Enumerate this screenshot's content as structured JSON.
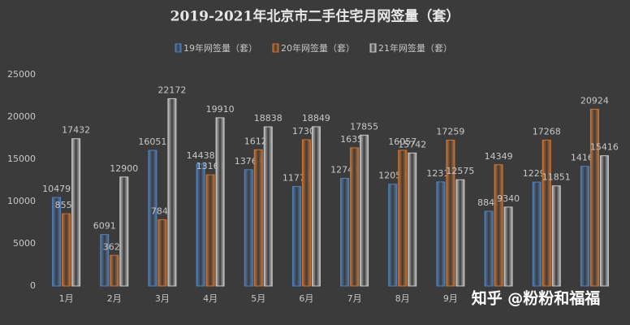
{
  "chart_data": {
    "type": "bar",
    "title": "2019-2021年北京市二手住宅月网签量（套）",
    "categories": [
      "1月",
      "2月",
      "3月",
      "4月",
      "5月",
      "6月",
      "7月",
      "8月",
      "9月",
      null,
      null,
      null
    ],
    "series": [
      {
        "name": "19年网签量（套）",
        "color": "#4f81bd",
        "values": [
          10479,
          6091,
          16051,
          14438,
          13764,
          11778,
          12744,
          12050,
          12319,
          8848,
          12296,
          14167
        ]
      },
      {
        "name": "20年网签量（套）",
        "color": "#d0732e",
        "values": [
          8554,
          3629,
          7848,
          13161,
          16125,
          17309,
          16356,
          16057,
          17259,
          14349,
          17268,
          20924
        ]
      },
      {
        "name": "21年网签量（套）",
        "color": "#c8c8c8",
        "values": [
          17432,
          12900,
          22172,
          19910,
          18838,
          18849,
          17855,
          15742,
          12575,
          9340,
          11851,
          15416
        ]
      }
    ],
    "ylim": [
      0,
      25000
    ],
    "yticks": [
      0,
      5000,
      10000,
      15000,
      20000,
      25000
    ],
    "grid": false,
    "legend": "top",
    "watermark": "知乎 @粉粉和福福"
  }
}
